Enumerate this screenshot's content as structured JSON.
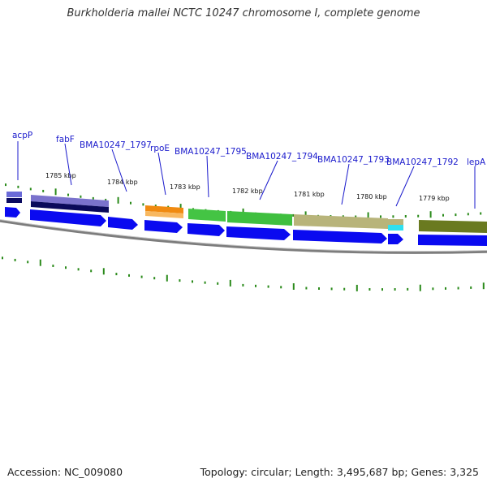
{
  "title": "Burkholderia mallei NCTC 10247 chromosome I, complete genome",
  "footer": {
    "accession": "Accession: NC_009080",
    "summary": "Topology: circular; Length: 3,495,687 bp; Genes: 3,325"
  },
  "colors": {
    "label_text": "#1a1acc",
    "label_line": "#1a1acc",
    "tick_dots": "#2a8a1a",
    "backbone": "#8a8a8a",
    "cds_blue": "#0a0af0"
  },
  "gene_labels": [
    "acpP",
    "fabF",
    "BMA10247_1797",
    "rpoE",
    "BMA10247_1795",
    "BMA10247_1794",
    "BMA10247_1793",
    "BMA10247_1792",
    "lepA"
  ],
  "scale_labels": [
    "1785 kbp",
    "1784 kbp",
    "1783 kbp",
    "1782 kbp",
    "1781 kbp",
    "1780 kbp",
    "1779 kbp"
  ],
  "feature_colors": {
    "acpP": "#6a6ad8",
    "fabF": "#7a72cc",
    "rpoE": "#f08a10",
    "BMA10247_1795": "#40c040",
    "BMA10247_1794": "#40c040",
    "BMA10247_1793": "#b8b47a",
    "BMA10247_1792": "#30e0f0",
    "lepA": "#6a7a20"
  }
}
